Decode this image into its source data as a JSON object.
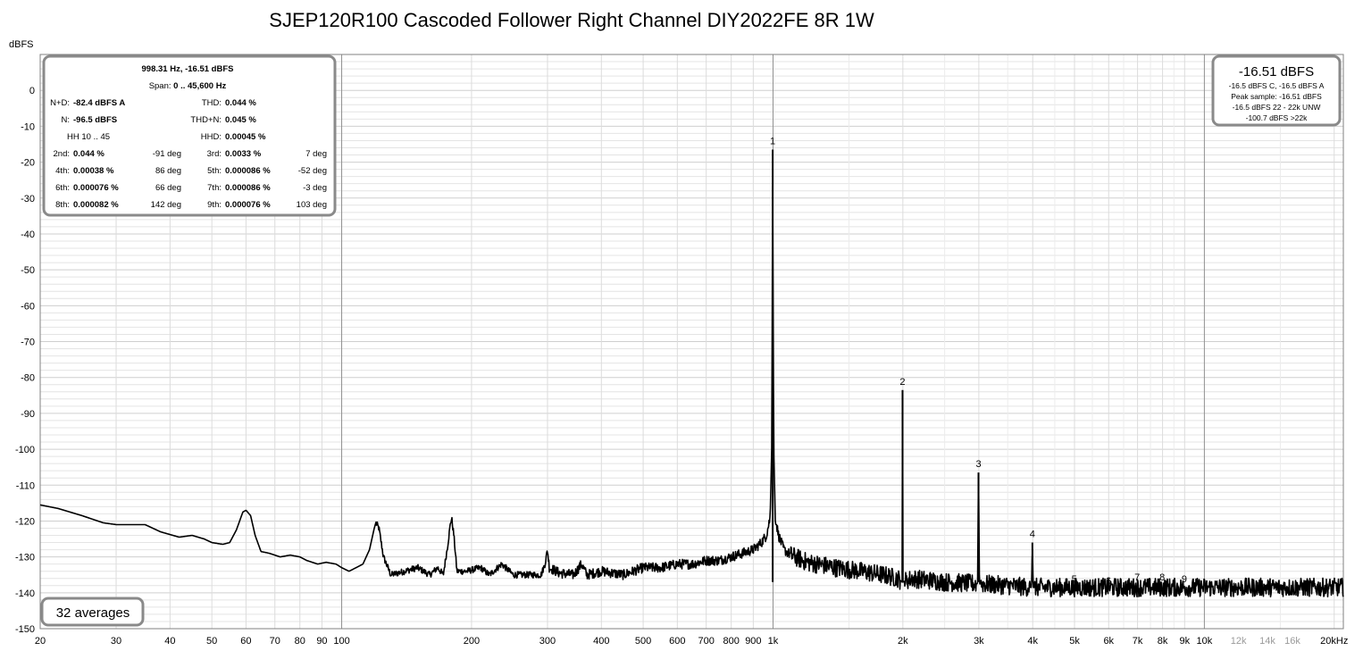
{
  "chart_data": {
    "type": "line",
    "title": "SJEP120R100 Cascoded Follower Right Channel DIY2022FE 8R 1W",
    "ylabel": "dBFS",
    "xlabel": "",
    "xscale": "log",
    "xlim": [
      20,
      21000
    ],
    "ylim": [
      -150,
      10
    ],
    "yticks": [
      0,
      -10,
      -20,
      -30,
      -40,
      -50,
      -60,
      -70,
      -80,
      -90,
      -100,
      -110,
      -120,
      -130,
      -140,
      -150
    ],
    "xticks": [
      {
        "v": 20,
        "label": "20"
      },
      {
        "v": 30,
        "label": "30"
      },
      {
        "v": 40,
        "label": "40"
      },
      {
        "v": 50,
        "label": "50"
      },
      {
        "v": 60,
        "label": "60"
      },
      {
        "v": 70,
        "label": "70"
      },
      {
        "v": 80,
        "label": "80"
      },
      {
        "v": 90,
        "label": "90"
      },
      {
        "v": 100,
        "label": "100"
      },
      {
        "v": 200,
        "label": "200"
      },
      {
        "v": 300,
        "label": "300"
      },
      {
        "v": 400,
        "label": "400"
      },
      {
        "v": 500,
        "label": "500"
      },
      {
        "v": 600,
        "label": "600"
      },
      {
        "v": 700,
        "label": "700"
      },
      {
        "v": 800,
        "label": "800"
      },
      {
        "v": 900,
        "label": "900"
      },
      {
        "v": 1000,
        "label": "1k"
      },
      {
        "v": 2000,
        "label": "2k"
      },
      {
        "v": 3000,
        "label": "3k"
      },
      {
        "v": 4000,
        "label": "4k"
      },
      {
        "v": 5000,
        "label": "5k"
      },
      {
        "v": 6000,
        "label": "6k"
      },
      {
        "v": 7000,
        "label": "7k"
      },
      {
        "v": 8000,
        "label": "8k"
      },
      {
        "v": 9000,
        "label": "9k"
      },
      {
        "v": 10000,
        "label": "10k"
      },
      {
        "v": 12000,
        "label": "12k",
        "faint": true
      },
      {
        "v": 14000,
        "label": "14k",
        "faint": true
      },
      {
        "v": 16000,
        "label": "16k",
        "faint": true
      },
      {
        "v": 20000,
        "label": "20kHz"
      }
    ],
    "grid": true,
    "series": [
      {
        "points": [
          [
            20,
            -115.5
          ],
          [
            22,
            -116.5
          ],
          [
            25,
            -118.5
          ],
          [
            28,
            -120.5
          ],
          [
            30,
            -121
          ],
          [
            35,
            -121
          ],
          [
            38,
            -123
          ],
          [
            42,
            -124.5
          ],
          [
            45,
            -124
          ],
          [
            48,
            -125
          ],
          [
            50,
            -126
          ],
          [
            53,
            -126.5
          ],
          [
            55,
            -126
          ],
          [
            57,
            -122.5
          ],
          [
            59,
            -117.5
          ],
          [
            60,
            -117
          ],
          [
            61.5,
            -118.5
          ],
          [
            63,
            -124
          ],
          [
            65,
            -128.5
          ],
          [
            68,
            -129
          ],
          [
            72,
            -130
          ],
          [
            76,
            -129.5
          ],
          [
            80,
            -130
          ],
          [
            83,
            -131
          ],
          [
            88,
            -132
          ],
          [
            92,
            -131.5
          ],
          [
            97,
            -132
          ],
          [
            100,
            -133
          ],
          [
            104,
            -134
          ],
          [
            108,
            -133
          ],
          [
            112,
            -132
          ],
          [
            116,
            -128
          ],
          [
            119,
            -122
          ],
          [
            120,
            -120.5
          ],
          [
            122,
            -122
          ],
          [
            125,
            -130
          ],
          [
            130,
            -135
          ],
          [
            140,
            -134
          ],
          [
            150,
            -133
          ],
          [
            160,
            -135
          ],
          [
            167,
            -133
          ],
          [
            172,
            -135
          ],
          [
            176,
            -127
          ],
          [
            179,
            -120
          ],
          [
            180,
            -119.5
          ],
          [
            182,
            -124
          ],
          [
            185,
            -134
          ],
          [
            195,
            -134
          ],
          [
            210,
            -133
          ],
          [
            220,
            -135
          ],
          [
            235,
            -132
          ],
          [
            250,
            -135
          ],
          [
            270,
            -135
          ],
          [
            290,
            -135
          ],
          [
            296,
            -132
          ],
          [
            300,
            -128
          ],
          [
            303,
            -133
          ],
          [
            320,
            -134.5
          ],
          [
            345,
            -135
          ],
          [
            360,
            -132
          ],
          [
            370,
            -135
          ],
          [
            400,
            -134
          ],
          [
            450,
            -135
          ],
          [
            500,
            -133
          ],
          [
            550,
            -133
          ],
          [
            600,
            -132
          ],
          [
            650,
            -132
          ],
          [
            700,
            -131
          ],
          [
            750,
            -131
          ],
          [
            800,
            -130
          ],
          [
            850,
            -129
          ],
          [
            900,
            -128
          ],
          [
            940,
            -126
          ],
          [
            965,
            -124
          ],
          [
            985,
            -119
          ],
          [
            993,
            -100
          ],
          [
            996,
            -60
          ],
          [
            998.3,
            -16.5
          ],
          [
            1000.5,
            -60
          ],
          [
            1004,
            -100
          ],
          [
            1012,
            -119
          ],
          [
            1030,
            -124
          ],
          [
            1060,
            -128
          ],
          [
            1100,
            -129.5
          ],
          [
            1200,
            -131.5
          ],
          [
            1400,
            -133
          ],
          [
            1600,
            -134
          ],
          [
            1800,
            -135
          ],
          [
            1950,
            -136
          ],
          [
            1992,
            -137
          ],
          [
            1996.6,
            -83.5
          ],
          [
            2001,
            -137
          ],
          [
            2100,
            -136
          ],
          [
            2500,
            -137
          ],
          [
            2980,
            -137.5
          ],
          [
            2994.9,
            -106.5
          ],
          [
            3010,
            -137.5
          ],
          [
            3500,
            -138
          ],
          [
            3975,
            -138.5
          ],
          [
            3993.2,
            -126
          ],
          [
            4010,
            -138.5
          ],
          [
            5000,
            -138.5
          ],
          [
            6000,
            -138.5
          ],
          [
            8000,
            -138.5
          ],
          [
            10000,
            -138.5
          ],
          [
            14000,
            -138.5
          ],
          [
            21000,
            -138.5
          ]
        ]
      }
    ],
    "harmonics": [
      {
        "label": "1",
        "f": 998.3,
        "db": -16.5
      },
      {
        "label": "2",
        "f": 1996.6,
        "db": -83.5
      },
      {
        "label": "3",
        "f": 2994.9,
        "db": -106.5
      },
      {
        "label": "4",
        "f": 3993.2,
        "db": -126
      },
      {
        "label": "5",
        "f": 4991.5,
        "db": -138.5
      },
      {
        "label": "6",
        "f": 5989.8,
        "db": -139
      },
      {
        "label": "7",
        "f": 6988.1,
        "db": -138
      },
      {
        "label": "8",
        "f": 7986.4,
        "db": -138
      },
      {
        "label": "9",
        "f": 8984.7,
        "db": -138.5
      }
    ]
  },
  "stats_box": {
    "line1": "998.31 Hz, -16.51 dBFS",
    "span_label": "Span:",
    "span_value": "0 .. 45,600 Hz",
    "nd_label": "N+D:",
    "nd_value": "-82.4 dBFS A",
    "thd_label": "THD:",
    "thd_value": "0.044 %",
    "n_label": "N:",
    "n_value": "-96.5 dBFS",
    "thdn_label": "THD+N:",
    "thdn_value": "0.045 %",
    "hh_label": "HH 10 .. 45",
    "hhd_label": "HHD:",
    "hhd_value": "0.00045 %",
    "rows": [
      {
        "l1": "2nd:",
        "v1": "0.044 %",
        "d1": "-91 deg",
        "l2": "3rd:",
        "v2": "0.0033 %",
        "d2": "7 deg"
      },
      {
        "l1": "4th:",
        "v1": "0.00038 %",
        "d1": "86 deg",
        "l2": "5th:",
        "v2": "0.000086 %",
        "d2": "-52 deg"
      },
      {
        "l1": "6th:",
        "v1": "0.000076 %",
        "d1": "66 deg",
        "l2": "7th:",
        "v2": "0.000086 %",
        "d2": "-3 deg"
      },
      {
        "l1": "8th:",
        "v1": "0.000082 %",
        "d1": "142 deg",
        "l2": "9th:",
        "v2": "0.000076 %",
        "d2": "103 deg"
      }
    ]
  },
  "level_box": {
    "main": "-16.51 dBFS",
    "line1": "-16.5 dBFS C, -16.5 dBFS A",
    "line2": "Peak sample: -16.51 dBFS",
    "line3": "-16.5 dBFS 22 - 22k UNW",
    "line4": "-100.7 dBFS >22k"
  },
  "averages_label": "32 averages",
  "colors": {
    "trace": "#000000",
    "grid_minor": "#e4e4e4",
    "grid_major": "#909090",
    "box_border": "#8a8a8a"
  }
}
